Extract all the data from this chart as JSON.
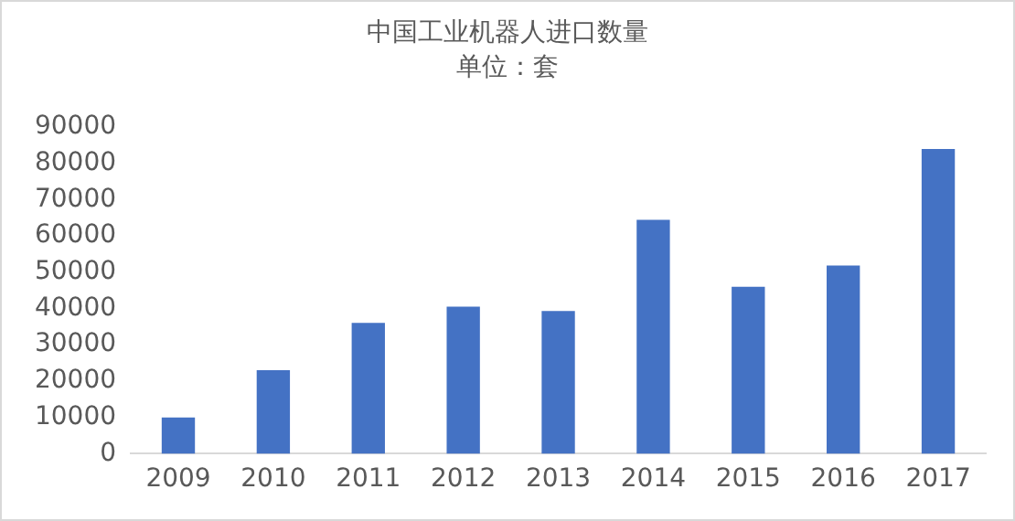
{
  "chart_data": {
    "type": "bar",
    "title": "中国工业机器人进口数量",
    "subtitle": "单位：套",
    "categories": [
      "2009",
      "2010",
      "2011",
      "2012",
      "2013",
      "2014",
      "2015",
      "2016",
      "2017"
    ],
    "values": [
      10000,
      23000,
      36000,
      40500,
      39300,
      64400,
      46000,
      51800,
      83900
    ],
    "color": "#4472c4",
    "ylim": [
      0,
      90000
    ],
    "yticks": [
      0,
      10000,
      20000,
      30000,
      40000,
      50000,
      60000,
      70000,
      80000,
      90000
    ],
    "grid": false,
    "legend": false
  }
}
